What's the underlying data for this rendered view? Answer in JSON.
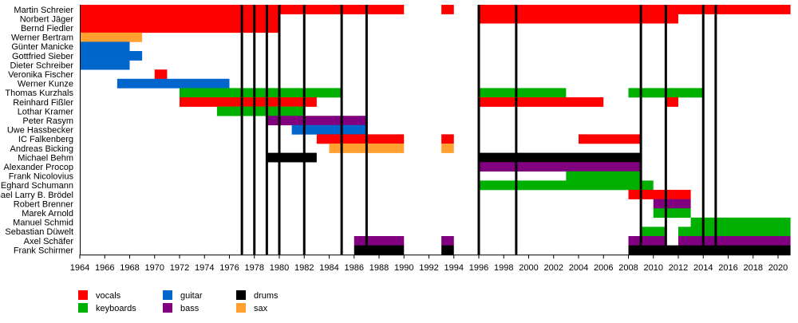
{
  "chart_data": {
    "type": "timeline",
    "title": "",
    "xlabel": "",
    "ylabel": "",
    "xlim": [
      1964,
      2021
    ],
    "x_ticks": [
      1964,
      1966,
      1968,
      1970,
      1972,
      1974,
      1976,
      1978,
      1980,
      1982,
      1984,
      1986,
      1988,
      1990,
      1992,
      1994,
      1996,
      1998,
      2000,
      2002,
      2004,
      2006,
      2008,
      2010,
      2012,
      2014,
      2016,
      2018,
      2020
    ],
    "grid": false,
    "legend_placement": "bottom-left",
    "roles": [
      {
        "key": "vocals",
        "label": "vocals",
        "color": "#ff0000"
      },
      {
        "key": "keyboards",
        "label": "keyboards",
        "color": "#00b000"
      },
      {
        "key": "guitar",
        "label": "guitar",
        "color": "#0066cc"
      },
      {
        "key": "bass",
        "label": "bass",
        "color": "#800080"
      },
      {
        "key": "drums",
        "label": "drums",
        "color": "#000000"
      },
      {
        "key": "sax",
        "label": "sax",
        "color": "#ffa030"
      }
    ],
    "album_lines": [
      1977,
      1978,
      1979,
      1980,
      1982,
      1985,
      1987,
      1996,
      1999,
      2009,
      2011,
      2014,
      2015
    ],
    "members": [
      {
        "name": "Martin Schreier",
        "periods": [
          {
            "role": "vocals",
            "start": 1964,
            "end": 1990
          },
          {
            "role": "vocals",
            "start": 1993,
            "end": 1994
          },
          {
            "role": "vocals",
            "start": 1996,
            "end": 2021
          }
        ]
      },
      {
        "name": "Norbert Jäger",
        "periods": [
          {
            "role": "vocals",
            "start": 1964,
            "end": 1980
          },
          {
            "role": "vocals",
            "start": 1996,
            "end": 2012
          }
        ]
      },
      {
        "name": "Bernd Fiedler",
        "periods": [
          {
            "role": "vocals",
            "start": 1964,
            "end": 1980
          }
        ]
      },
      {
        "name": "Werner Bertram",
        "periods": [
          {
            "role": "sax",
            "start": 1964,
            "end": 1969
          }
        ]
      },
      {
        "name": "Günter Manicke",
        "periods": [
          {
            "role": "guitar",
            "start": 1964,
            "end": 1968
          }
        ]
      },
      {
        "name": "Gottfried Sieber",
        "periods": [
          {
            "role": "guitar",
            "start": 1964,
            "end": 1969
          }
        ]
      },
      {
        "name": "Dieter Schreiber",
        "periods": [
          {
            "role": "guitar",
            "start": 1964,
            "end": 1968
          }
        ]
      },
      {
        "name": "Veronika Fischer",
        "periods": [
          {
            "role": "vocals",
            "start": 1970,
            "end": 1971
          }
        ]
      },
      {
        "name": "Werner Kunze",
        "periods": [
          {
            "role": "guitar",
            "start": 1967,
            "end": 1976
          }
        ]
      },
      {
        "name": "Thomas Kurzhals",
        "periods": [
          {
            "role": "keyboards",
            "start": 1972,
            "end": 1985
          },
          {
            "role": "keyboards",
            "start": 1996,
            "end": 2003
          },
          {
            "role": "keyboards",
            "start": 2008,
            "end": 2014
          }
        ]
      },
      {
        "name": "Reinhard Fißler",
        "periods": [
          {
            "role": "vocals",
            "start": 1972,
            "end": 1983
          },
          {
            "role": "vocals",
            "start": 1996,
            "end": 2006
          },
          {
            "role": "vocals",
            "start": 2011,
            "end": 2012
          }
        ]
      },
      {
        "name": "Lothar Kramer",
        "periods": [
          {
            "role": "keyboards",
            "start": 1975,
            "end": 1982
          }
        ]
      },
      {
        "name": "Peter Rasym",
        "periods": [
          {
            "role": "bass",
            "start": 1979,
            "end": 1987
          }
        ]
      },
      {
        "name": "Uwe Hassbecker",
        "periods": [
          {
            "role": "guitar",
            "start": 1981,
            "end": 1987
          }
        ]
      },
      {
        "name": "IC Falkenberg",
        "periods": [
          {
            "role": "vocals",
            "start": 1983,
            "end": 1990
          },
          {
            "role": "vocals",
            "start": 1993,
            "end": 1994
          },
          {
            "role": "vocals",
            "start": 2004,
            "end": 2009
          }
        ]
      },
      {
        "name": "Andreas Bicking",
        "periods": [
          {
            "role": "sax",
            "start": 1984,
            "end": 1990
          },
          {
            "role": "sax",
            "start": 1993,
            "end": 1994
          }
        ]
      },
      {
        "name": "Michael Behm",
        "periods": [
          {
            "role": "drums",
            "start": 1979,
            "end": 1983
          },
          {
            "role": "drums",
            "start": 1996,
            "end": 2009
          }
        ]
      },
      {
        "name": "Alexander Procop",
        "periods": [
          {
            "role": "bass",
            "start": 1996,
            "end": 2009
          }
        ]
      },
      {
        "name": "Frank Nicolovius",
        "periods": [
          {
            "role": "keyboards",
            "start": 2003,
            "end": 2009
          }
        ]
      },
      {
        "name": "Eghard Schumann",
        "periods": [
          {
            "role": "keyboards",
            "start": 1996,
            "end": 2010
          }
        ]
      },
      {
        "name": "Michael Larry B. Brödel",
        "periods": [
          {
            "role": "vocals",
            "start": 2008,
            "end": 2013
          }
        ]
      },
      {
        "name": "Robert Brenner",
        "periods": [
          {
            "role": "bass",
            "start": 2010,
            "end": 2013
          }
        ]
      },
      {
        "name": "Marek Arnold",
        "periods": [
          {
            "role": "keyboards",
            "start": 2010,
            "end": 2013
          }
        ]
      },
      {
        "name": "Manuel Schmid",
        "periods": [
          {
            "role": "keyboards",
            "start": 2013,
            "end": 2021
          }
        ]
      },
      {
        "name": "Sebastian Düwelt",
        "periods": [
          {
            "role": "keyboards",
            "start": 2009,
            "end": 2011
          },
          {
            "role": "keyboards",
            "start": 2012,
            "end": 2021
          }
        ]
      },
      {
        "name": "Axel Schäfer",
        "periods": [
          {
            "role": "bass",
            "start": 1986,
            "end": 1990
          },
          {
            "role": "bass",
            "start": 1993,
            "end": 1994
          },
          {
            "role": "bass",
            "start": 2008,
            "end": 2011
          },
          {
            "role": "bass",
            "start": 2012,
            "end": 2021
          }
        ]
      },
      {
        "name": "Frank Schirmer",
        "periods": [
          {
            "role": "drums",
            "start": 1986,
            "end": 1990
          },
          {
            "role": "drums",
            "start": 1993,
            "end": 1994
          },
          {
            "role": "drums",
            "start": 2008,
            "end": 2021
          }
        ]
      }
    ]
  }
}
